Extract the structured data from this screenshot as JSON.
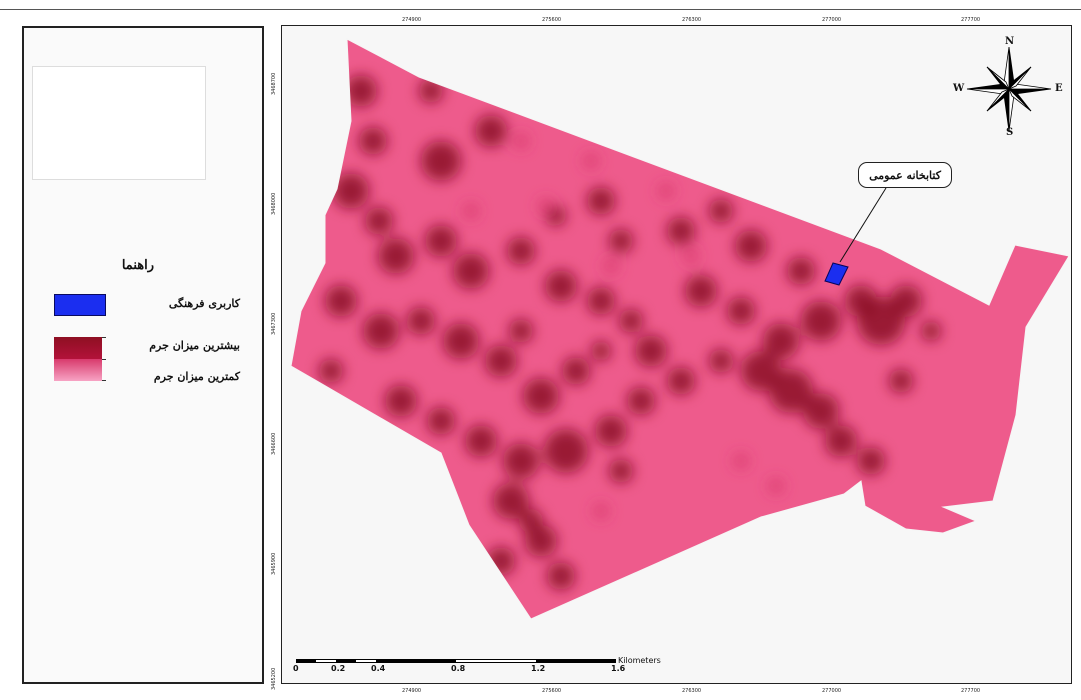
{
  "legend": {
    "title": "راهنما",
    "items": [
      {
        "label": "کاربری فرهنگی",
        "color": "#1b2ef0"
      },
      {
        "label": "بیشترین میزان جرم",
        "color": "#8e0f22"
      },
      {
        "label": "کمترین میزان جرم",
        "color": "#f7a3c4"
      }
    ]
  },
  "map": {
    "base_color": "#ee5b8c",
    "hotspot_color": "#8b0a25",
    "background": "#f7f7f7",
    "x_coords_top": [
      "274900",
      "275600",
      "276300",
      "277000",
      "277700"
    ],
    "x_coords_bottom": [
      "274900",
      "275600",
      "276300",
      "277000",
      "277700"
    ],
    "y_coords_left": [
      "3468700",
      "3468000",
      "3467300",
      "3466600",
      "3465900",
      "3465200"
    ],
    "callout_label": "کتابخانه عمومی"
  },
  "compass": {
    "n": "N",
    "s": "S",
    "e": "E",
    "w": "W"
  },
  "scale": {
    "labels": [
      "0",
      "0.2",
      "0.4",
      "0.8",
      "1.2",
      "1.6"
    ],
    "units": "Kilometers"
  }
}
